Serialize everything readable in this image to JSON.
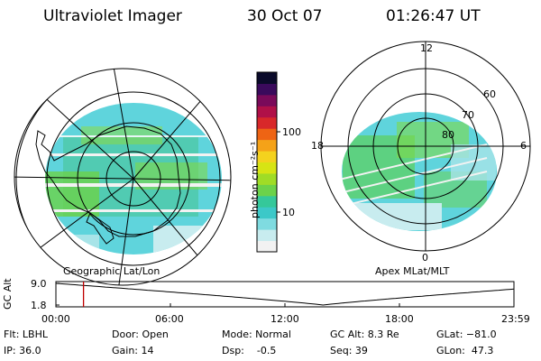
{
  "header": {
    "instrument": "Ultraviolet Imager",
    "date": "30 Oct 07",
    "time": "01:26:47 UT"
  },
  "left_map": {
    "caption": "Geographic Lat/Lon"
  },
  "right_map": {
    "caption": "Apex MLat/MLT",
    "mlt_labels": [
      "12",
      "6",
      "0",
      "18"
    ],
    "lat_labels": [
      "60",
      "70",
      "80"
    ]
  },
  "colorbar": {
    "unit_label": "photon cm⁻²s⁻¹",
    "ticks": [
      "100",
      "10"
    ],
    "colors": [
      "#f2f2f2",
      "#c8ecef",
      "#7fdbe0",
      "#3cc8c8",
      "#35c89a",
      "#6cd24a",
      "#a0dc26",
      "#d7e414",
      "#f4d21e",
      "#f5a218",
      "#ee6414",
      "#d8282a",
      "#b01048",
      "#7a0a5a",
      "#3a0a5c",
      "#0a0a2a"
    ]
  },
  "altitude_plot": {
    "ylabel": "GC Alt",
    "yticks": [
      "9.0",
      "1.8"
    ],
    "xticks": [
      "00:00",
      "06:00",
      "12:00",
      "18:00",
      "23:59"
    ],
    "current_time_hours": 1.446
  },
  "footer": {
    "col1": [
      "Flt: LBHL",
      "IP: 36.0"
    ],
    "col2": [
      "Door: Open",
      "Gain: 14"
    ],
    "col3": [
      "Mode: Normal",
      "Dsp:    -0.5"
    ],
    "col4": [
      "GC Alt: 8.3 Re",
      "Seq: 39"
    ],
    "col5": [
      "GLat: −81.0",
      "GLon:  47.3"
    ]
  }
}
